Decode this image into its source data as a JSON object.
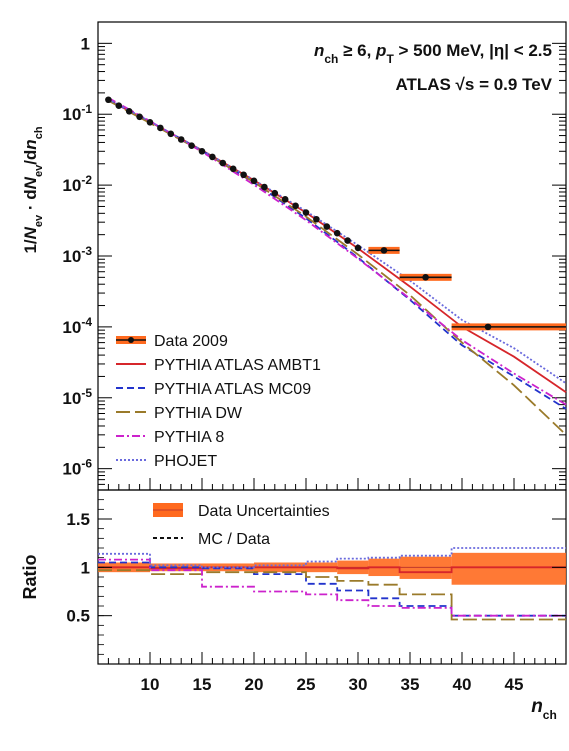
{
  "chart_data": [
    {
      "type": "line",
      "panel": "distribution",
      "annotation_line1": "n_ch ≥ 6, p_T > 500 MeV, |η| < 2.5",
      "annotation_line2": "ATLAS √s = 0.9 TeV",
      "ylabel": "1/N_ev · dN_ev/dn_ch",
      "yscale": "log",
      "xlim": [
        5,
        50
      ],
      "ylim": [
        5e-07,
        2
      ],
      "y_tick_labels": [
        "10^-6",
        "10^-5",
        "10^-4",
        "10^-3",
        "10^-2",
        "10^-1",
        "1"
      ],
      "legend_position": "bottom-left",
      "data": {
        "name": "Data 2009",
        "points": [
          [
            6,
            0.16
          ],
          [
            7,
            0.132
          ],
          [
            8,
            0.11
          ],
          [
            9,
            0.092
          ],
          [
            10,
            0.077
          ],
          [
            11,
            0.064
          ],
          [
            12,
            0.053
          ],
          [
            13,
            0.044
          ],
          [
            14,
            0.036
          ],
          [
            15,
            0.03
          ],
          [
            16,
            0.025
          ],
          [
            17,
            0.0205
          ],
          [
            18,
            0.017
          ],
          [
            19,
            0.014
          ],
          [
            20,
            0.0115
          ],
          [
            21,
            0.0094
          ],
          [
            22,
            0.0077
          ],
          [
            23,
            0.0063
          ],
          [
            24,
            0.0051
          ],
          [
            25,
            0.0041
          ],
          [
            26,
            0.0033
          ],
          [
            27,
            0.0026
          ],
          [
            28,
            0.0021
          ],
          [
            29,
            0.00165
          ],
          [
            30,
            0.0013
          ]
        ],
        "binned": [
          {
            "x": 32.5,
            "xlo": 31,
            "xhi": 34,
            "y": 0.0012
          },
          {
            "x": 36.5,
            "xlo": 34,
            "xhi": 39,
            "y": 0.0005
          },
          {
            "x": 42.5,
            "xlo": 39,
            "xhi": 50,
            "y": 0.0001
          }
        ]
      },
      "series": [
        {
          "name": "PYTHIA ATLAS AMBT1",
          "color": "#d6262b",
          "dash": "solid",
          "x": [
            6,
            10,
            15,
            20,
            25,
            30,
            35,
            40,
            45,
            50
          ],
          "y": [
            0.158,
            0.078,
            0.031,
            0.0117,
            0.0041,
            0.00128,
            0.00037,
            0.0001,
            3.8e-05,
            1.2e-05
          ]
        },
        {
          "name": "PYTHIA ATLAS MC09",
          "color": "#2233cc",
          "dash": "dashed",
          "x": [
            6,
            10,
            15,
            20,
            25,
            30,
            35,
            40,
            45,
            50
          ],
          "y": [
            0.16,
            0.079,
            0.0305,
            0.0108,
            0.0034,
            0.00095,
            0.00024,
            5.5e-05,
            2e-05,
            7e-06
          ]
        },
        {
          "name": "PYTHIA DW",
          "color": "#9a7a2a",
          "dash": "longdash",
          "x": [
            6,
            10,
            15,
            20,
            25,
            30,
            35,
            40,
            45,
            50
          ],
          "y": [
            0.155,
            0.075,
            0.03,
            0.011,
            0.0036,
            0.00105,
            0.00028,
            6e-05,
            1.5e-05,
            3e-06
          ]
        },
        {
          "name": "PYTHIA 8",
          "color": "#cc22cc",
          "dash": "dashdot",
          "x": [
            6,
            10,
            15,
            20,
            25,
            30,
            35,
            40,
            45,
            50
          ],
          "y": [
            0.17,
            0.08,
            0.0295,
            0.0101,
            0.0032,
            0.00092,
            0.00025,
            6.5e-05,
            2.2e-05,
            8e-06
          ]
        },
        {
          "name": "PHOJET",
          "color": "#6a6add",
          "dash": "dotted",
          "x": [
            6,
            10,
            15,
            20,
            25,
            30,
            35,
            40,
            45,
            50
          ],
          "y": [
            0.162,
            0.079,
            0.031,
            0.0118,
            0.0043,
            0.00142,
            0.00045,
            0.000125,
            5e-05,
            1.6e-05
          ]
        }
      ]
    },
    {
      "type": "line",
      "panel": "ratio",
      "ylabel": "Ratio",
      "xlabel": "n_ch",
      "xlim": [
        5,
        50
      ],
      "ylim": [
        0,
        1.8
      ],
      "x_ticks": [
        10,
        15,
        20,
        25,
        30,
        35,
        40,
        45
      ],
      "y_ticks": [
        0.5,
        1,
        1.5
      ],
      "legend_position": "top",
      "uncertainty_band": {
        "name": "Data Uncertainties",
        "color": "#ff6a1f",
        "bins": [
          {
            "xlo": 5,
            "xhi": 10,
            "lo": 0.95,
            "hi": 1.05
          },
          {
            "xlo": 10,
            "xhi": 20,
            "lo": 0.96,
            "hi": 1.04
          },
          {
            "xlo": 20,
            "xhi": 28,
            "lo": 0.95,
            "hi": 1.05
          },
          {
            "xlo": 28,
            "xhi": 31,
            "lo": 0.93,
            "hi": 1.07
          },
          {
            "xlo": 31,
            "xhi": 34,
            "lo": 0.91,
            "hi": 1.09
          },
          {
            "xlo": 34,
            "xhi": 39,
            "lo": 0.88,
            "hi": 1.11
          },
          {
            "xlo": 39,
            "xhi": 50,
            "lo": 0.82,
            "hi": 1.15
          }
        ]
      },
      "mc_legend_label": "MC / Data",
      "band_legend_label": "Data Uncertainties",
      "ratio_series": [
        {
          "name": "PYTHIA ATLAS AMBT1",
          "color": "#d6262b",
          "dash": "solid",
          "x": [
            5,
            10,
            15,
            20,
            25,
            28,
            31,
            34,
            39,
            50
          ],
          "y": [
            1.0,
            0.99,
            1.0,
            1.0,
            1.0,
            0.99,
            1.0,
            0.95,
            1.0,
            1.0
          ]
        },
        {
          "name": "PYTHIA ATLAS MC09",
          "color": "#2233cc",
          "dash": "dashed",
          "x": [
            5,
            10,
            15,
            20,
            25,
            28,
            31,
            34,
            39,
            50
          ],
          "y": [
            1.05,
            1.0,
            0.99,
            0.93,
            0.83,
            0.76,
            0.68,
            0.6,
            0.5,
            0.5
          ]
        },
        {
          "name": "PYTHIA DW",
          "color": "#9a7a2a",
          "dash": "longdash",
          "x": [
            5,
            10,
            15,
            20,
            25,
            28,
            31,
            34,
            39,
            50
          ],
          "y": [
            0.97,
            0.93,
            0.95,
            0.95,
            0.9,
            0.86,
            0.82,
            0.72,
            0.46,
            0.46
          ]
        },
        {
          "name": "PYTHIA 8",
          "color": "#cc22cc",
          "dash": "dashdot",
          "x": [
            5,
            10,
            15,
            20,
            25,
            28,
            31,
            34,
            39,
            50
          ],
          "y": [
            1.08,
            0.97,
            0.8,
            0.75,
            0.72,
            0.66,
            0.6,
            0.58,
            0.5,
            0.5
          ]
        },
        {
          "name": "PHOJET",
          "color": "#6a6add",
          "dash": "dotted",
          "x": [
            5,
            10,
            15,
            20,
            25,
            28,
            31,
            34,
            39,
            50
          ],
          "y": [
            1.14,
            1.02,
            1.0,
            1.02,
            1.06,
            1.09,
            1.1,
            1.12,
            1.2,
            1.2
          ]
        }
      ]
    }
  ]
}
